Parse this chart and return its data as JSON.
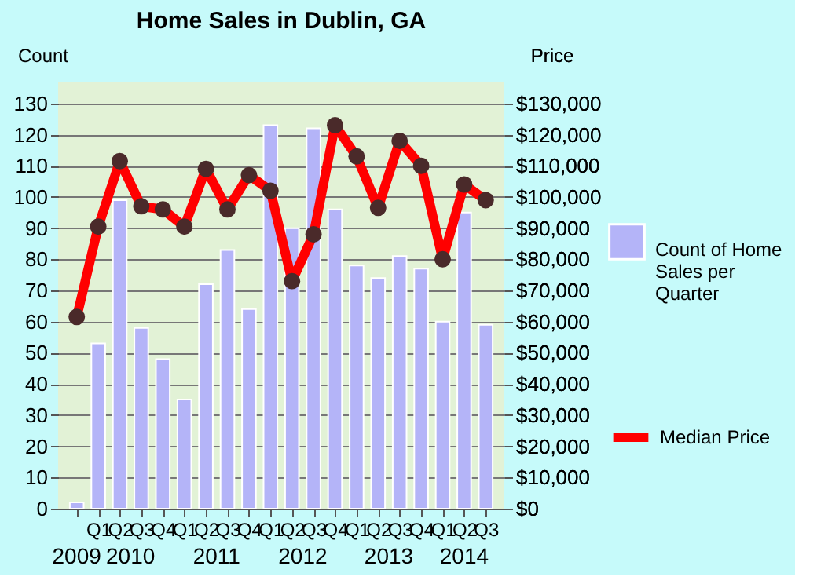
{
  "chart_data": {
    "type": "bar",
    "title": "Home Sales in Dublin, GA",
    "categories": [
      null,
      "Q1",
      "Q2",
      "Q3",
      "Q4",
      "Q1",
      "Q2",
      "Q3",
      "Q4",
      "Q1",
      "Q2",
      "Q3",
      "Q4",
      "Q1",
      "Q2",
      "Q3",
      "Q4",
      "Q1",
      "Q2",
      "Q3"
    ],
    "series": [
      {
        "name": "Count of Home Sales per Quarter",
        "color": "#b4b4f8",
        "values": [
          2,
          53,
          99,
          58,
          48,
          35,
          72,
          83,
          64,
          123,
          90,
          122,
          96,
          78,
          74,
          81,
          77,
          60,
          95,
          59
        ]
      },
      {
        "name": "Median Price",
        "type": "line",
        "axis": "y2",
        "color": "#ff0000",
        "values": [
          61500,
          90500,
          111500,
          97000,
          96000,
          90500,
          109000,
          96000,
          107000,
          102000,
          73000,
          88000,
          123000,
          113000,
          96500,
          118000,
          110000,
          80000,
          104000,
          99000
        ]
      }
    ],
    "ylabel": "Count",
    "y2label": "Price",
    "ylim": [
      0,
      137
    ],
    "yticks": [
      0,
      10,
      20,
      30,
      40,
      50,
      60,
      70,
      80,
      90,
      100,
      110,
      120,
      130
    ],
    "y2lim": [
      0,
      137000
    ],
    "y2ticks": [
      {
        "value": 0,
        "label": "$0"
      },
      {
        "value": 10000,
        "label": "$10,000"
      },
      {
        "value": 20000,
        "label": "$20,000"
      },
      {
        "value": 30000,
        "label": "$30,000"
      },
      {
        "value": 40000,
        "label": "$40,000"
      },
      {
        "value": 50000,
        "label": "$50,000"
      },
      {
        "value": 60000,
        "label": "$60,000"
      },
      {
        "value": 70000,
        "label": "$70,000"
      },
      {
        "value": 80000,
        "label": "$80,000"
      },
      {
        "value": 90000,
        "label": "$90,000"
      },
      {
        "value": 100000,
        "label": "$100,000"
      },
      {
        "value": 110000,
        "label": "$110,000"
      },
      {
        "value": 120000,
        "label": "$120,000"
      },
      {
        "value": 130000,
        "label": "$130,000"
      }
    ],
    "annotations": [
      "2009",
      "2010",
      "2011",
      "2012",
      "2013",
      "2014"
    ],
    "grid": "y",
    "legend": "right",
    "marker": "circle"
  }
}
